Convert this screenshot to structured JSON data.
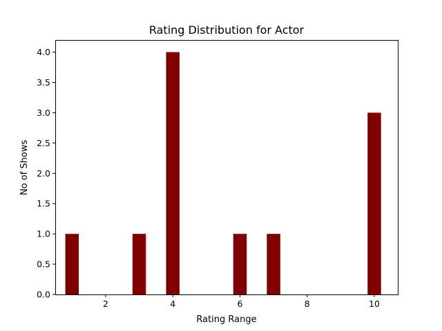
{
  "chart_data": {
    "type": "bar",
    "title": "Rating Distribution for Actor",
    "xlabel": "Rating Range",
    "ylabel": "No of Shows",
    "x": [
      1,
      3,
      4,
      6,
      7,
      10
    ],
    "values": [
      1,
      1,
      4,
      1,
      1,
      3
    ],
    "bar_width": 0.4,
    "xlim": [
      0.5,
      10.7
    ],
    "ylim": [
      0,
      4.2
    ],
    "xticks": [
      2,
      4,
      6,
      8,
      10
    ],
    "xtick_labels": [
      "2",
      "4",
      "6",
      "8",
      "10"
    ],
    "yticks": [
      0,
      0.5,
      1,
      1.5,
      2,
      2.5,
      3,
      3.5,
      4
    ],
    "ytick_labels": [
      "0.0",
      "0.5",
      "1.0",
      "1.5",
      "2.0",
      "2.5",
      "3.0",
      "3.5",
      "4.0"
    ],
    "bar_color": "#800000",
    "grid": false,
    "legend": "none"
  }
}
